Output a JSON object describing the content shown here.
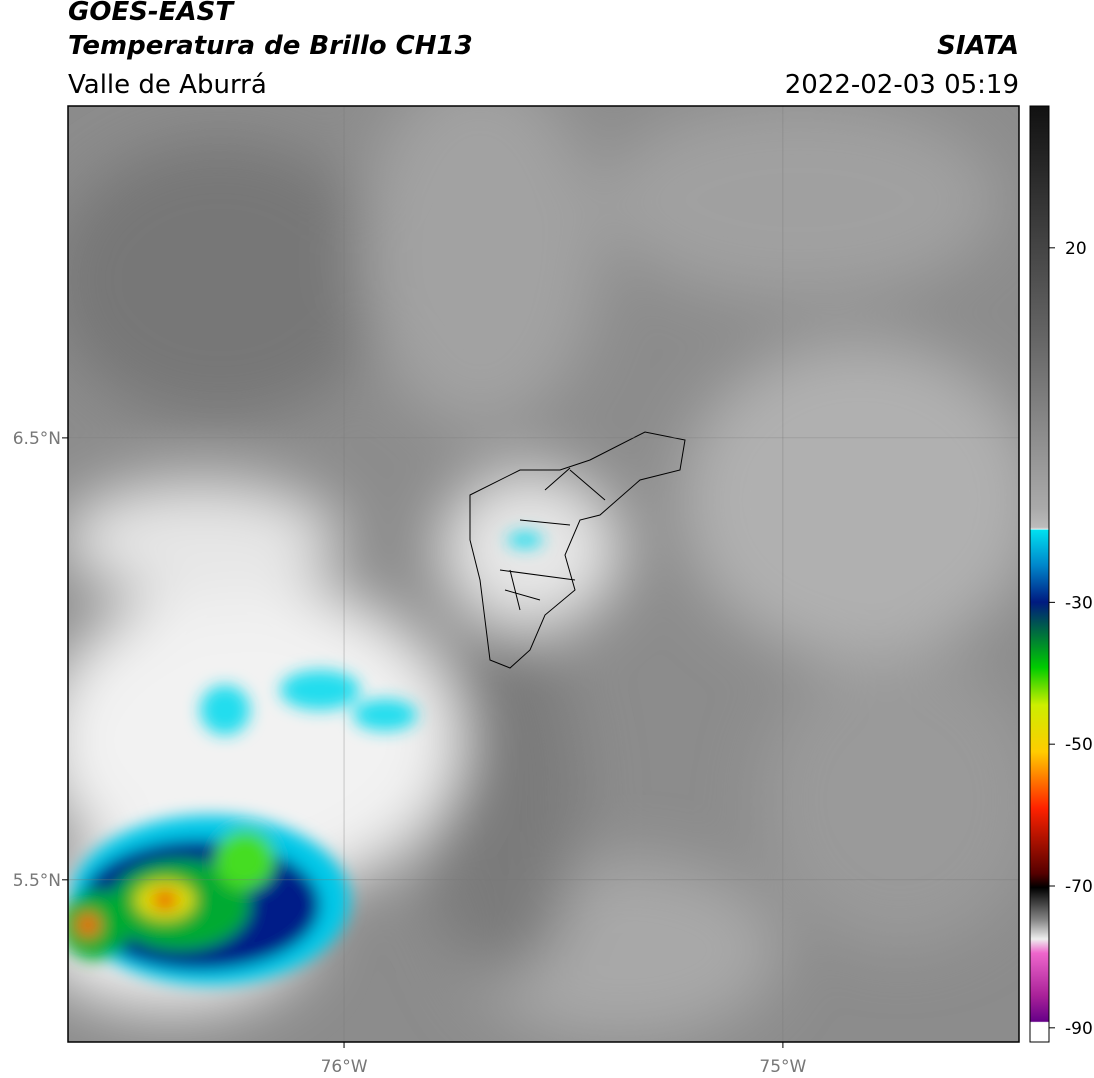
{
  "header": {
    "title": "GOES-EAST",
    "subtitle": "Temperatura de Brillo CH13",
    "region": "Valle de Aburrá",
    "source": "SIATA",
    "timestamp": "2022-02-03 05:19"
  },
  "map": {
    "xlim": [
      -76.629,
      -74.462
    ],
    "ylim": [
      5.133,
      7.251
    ],
    "xticks": [
      {
        "value": -76,
        "label": "76°W"
      },
      {
        "value": -75,
        "label": "75°W"
      }
    ],
    "yticks": [
      {
        "value": 6.5,
        "label": "6.5°N"
      },
      {
        "value": 5.5,
        "label": "5.5°N"
      }
    ],
    "grid": true
  },
  "colorbar": {
    "lim": [
      -92,
      40
    ],
    "ticks": [
      20,
      -30,
      -50,
      -70,
      -90
    ]
  }
}
